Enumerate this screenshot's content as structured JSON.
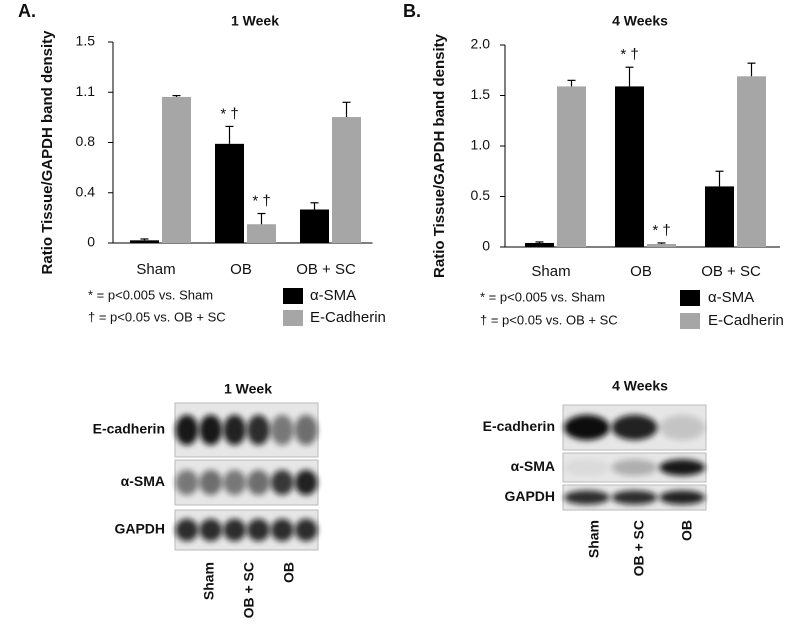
{
  "chart_data": [
    {
      "type": "bar",
      "panel": "A.",
      "title": "1 Week",
      "ylabel": "Ratio Tissue/GAPDH band density",
      "categories": [
        "Sham",
        "OB",
        "OB + SC"
      ],
      "series": [
        {
          "name": "α-SMA",
          "color": "#000000",
          "values": [
            0.02,
            0.74,
            0.25
          ],
          "errors": [
            0.01,
            0.13,
            0.05
          ],
          "annotations": [
            null,
            "* †",
            null
          ]
        },
        {
          "name": "E-Cadherin",
          "color": "#a6a6a6",
          "values": [
            1.09,
            0.14,
            0.94
          ],
          "errors": [
            0.01,
            0.08,
            0.11
          ],
          "annotations": [
            null,
            "* †",
            null
          ]
        }
      ],
      "ylim": [
        0,
        1.5
      ],
      "yticks": [
        0,
        {
          "value": 0.375,
          "label": "0.4"
        },
        {
          "value": 0.75,
          "label": "0.8"
        },
        {
          "value": 1.125,
          "label": "1.1"
        },
        1.5
      ],
      "notes": [
        "* = p<0.005 vs. Sham",
        "† = p<0.05 vs. OB  + SC"
      ]
    },
    {
      "type": "bar",
      "panel": "B.",
      "title": "4 Weeks",
      "ylabel": "Ratio Tissue/GAPDH band density",
      "categories": [
        "Sham",
        "OB",
        "OB + SC"
      ],
      "series": [
        {
          "name": "α-SMA",
          "color": "#000000",
          "values": [
            0.04,
            1.59,
            0.6
          ],
          "errors": [
            0.01,
            0.19,
            0.15
          ],
          "annotations": [
            null,
            "* †",
            null
          ]
        },
        {
          "name": "E-Cadherin",
          "color": "#a6a6a6",
          "values": [
            1.59,
            0.03,
            1.69
          ],
          "errors": [
            0.06,
            0.01,
            0.13
          ],
          "annotations": [
            null,
            "* †",
            null
          ]
        }
      ],
      "ylim": [
        0,
        2.0
      ],
      "yticks": [
        0,
        0.5,
        {
          "value": 1.0,
          "label": "1.0"
        },
        1.5,
        {
          "value": 2.0,
          "label": "2.0"
        }
      ],
      "notes": [
        "* = p<0.005 vs. Sham",
        "† = p<0.05 vs. OB  + SC"
      ]
    }
  ],
  "blots": [
    {
      "title": "1 Week",
      "rows": [
        "E-cadherin",
        "α-SMA",
        "GAPDH"
      ],
      "lanes": [
        "Sham",
        "OB + SC",
        "OB"
      ]
    },
    {
      "title": "4 Weeks",
      "rows": [
        "E-cadherin",
        "α-SMA",
        "GAPDH"
      ],
      "lanes": [
        "Sham",
        "OB + SC",
        "OB"
      ]
    }
  ]
}
